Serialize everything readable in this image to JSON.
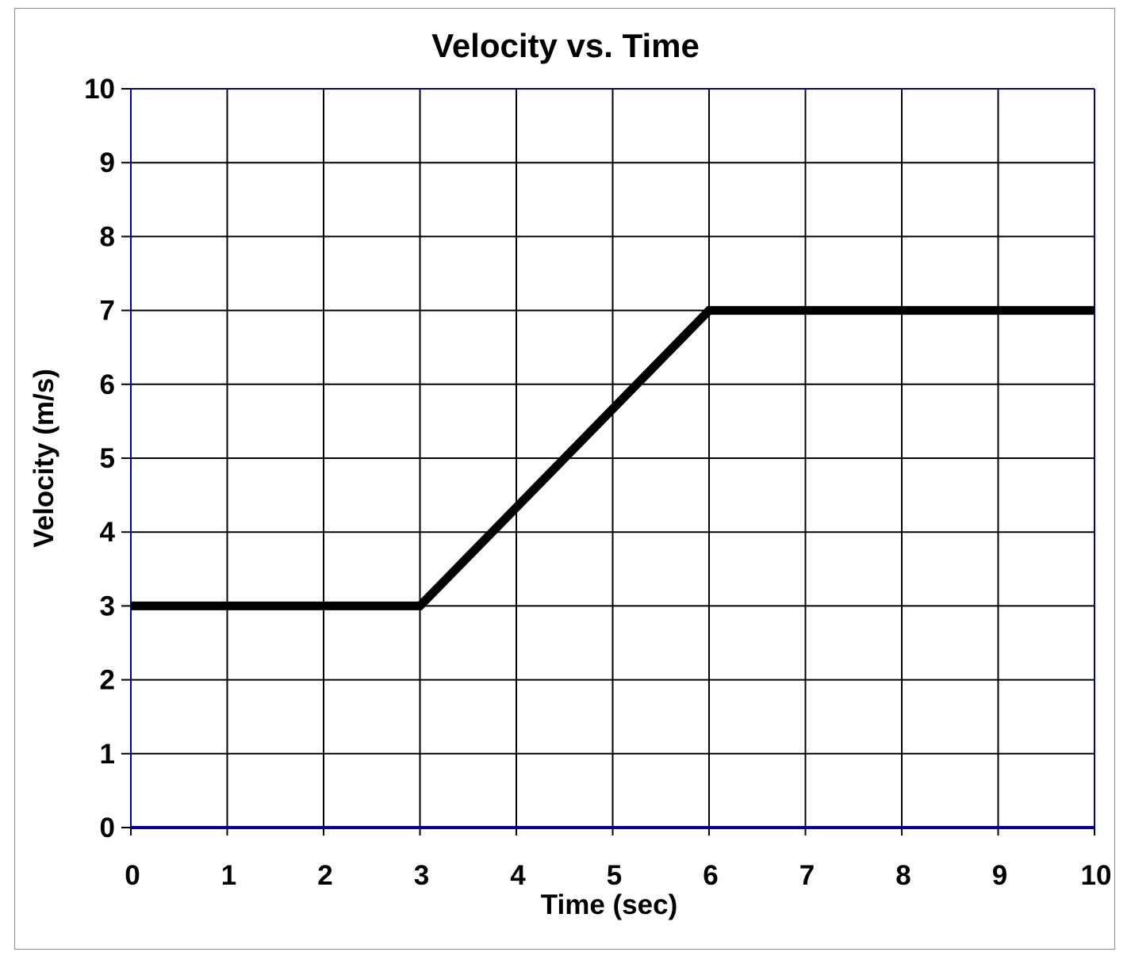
{
  "chart_data": {
    "type": "line",
    "title": "Velocity vs. Time",
    "xlabel": "Time (sec)",
    "ylabel": "Velocity (m/s)",
    "xlim": [
      0,
      10
    ],
    "ylim": [
      0,
      10
    ],
    "x_ticks": [
      "0",
      "1",
      "2",
      "3",
      "4",
      "5",
      "6",
      "7",
      "8",
      "9",
      "10"
    ],
    "y_ticks": [
      "0",
      "1",
      "2",
      "3",
      "4",
      "5",
      "6",
      "7",
      "8",
      "9",
      "10"
    ],
    "grid": true,
    "legend": "none",
    "series": [
      {
        "x": [
          0,
          3,
          6,
          10
        ],
        "y": [
          3,
          3,
          7,
          7
        ],
        "color": "#000000"
      }
    ],
    "colors": {
      "plot_border": "#0000a0",
      "grid": "#000000",
      "line": "#000000"
    }
  }
}
